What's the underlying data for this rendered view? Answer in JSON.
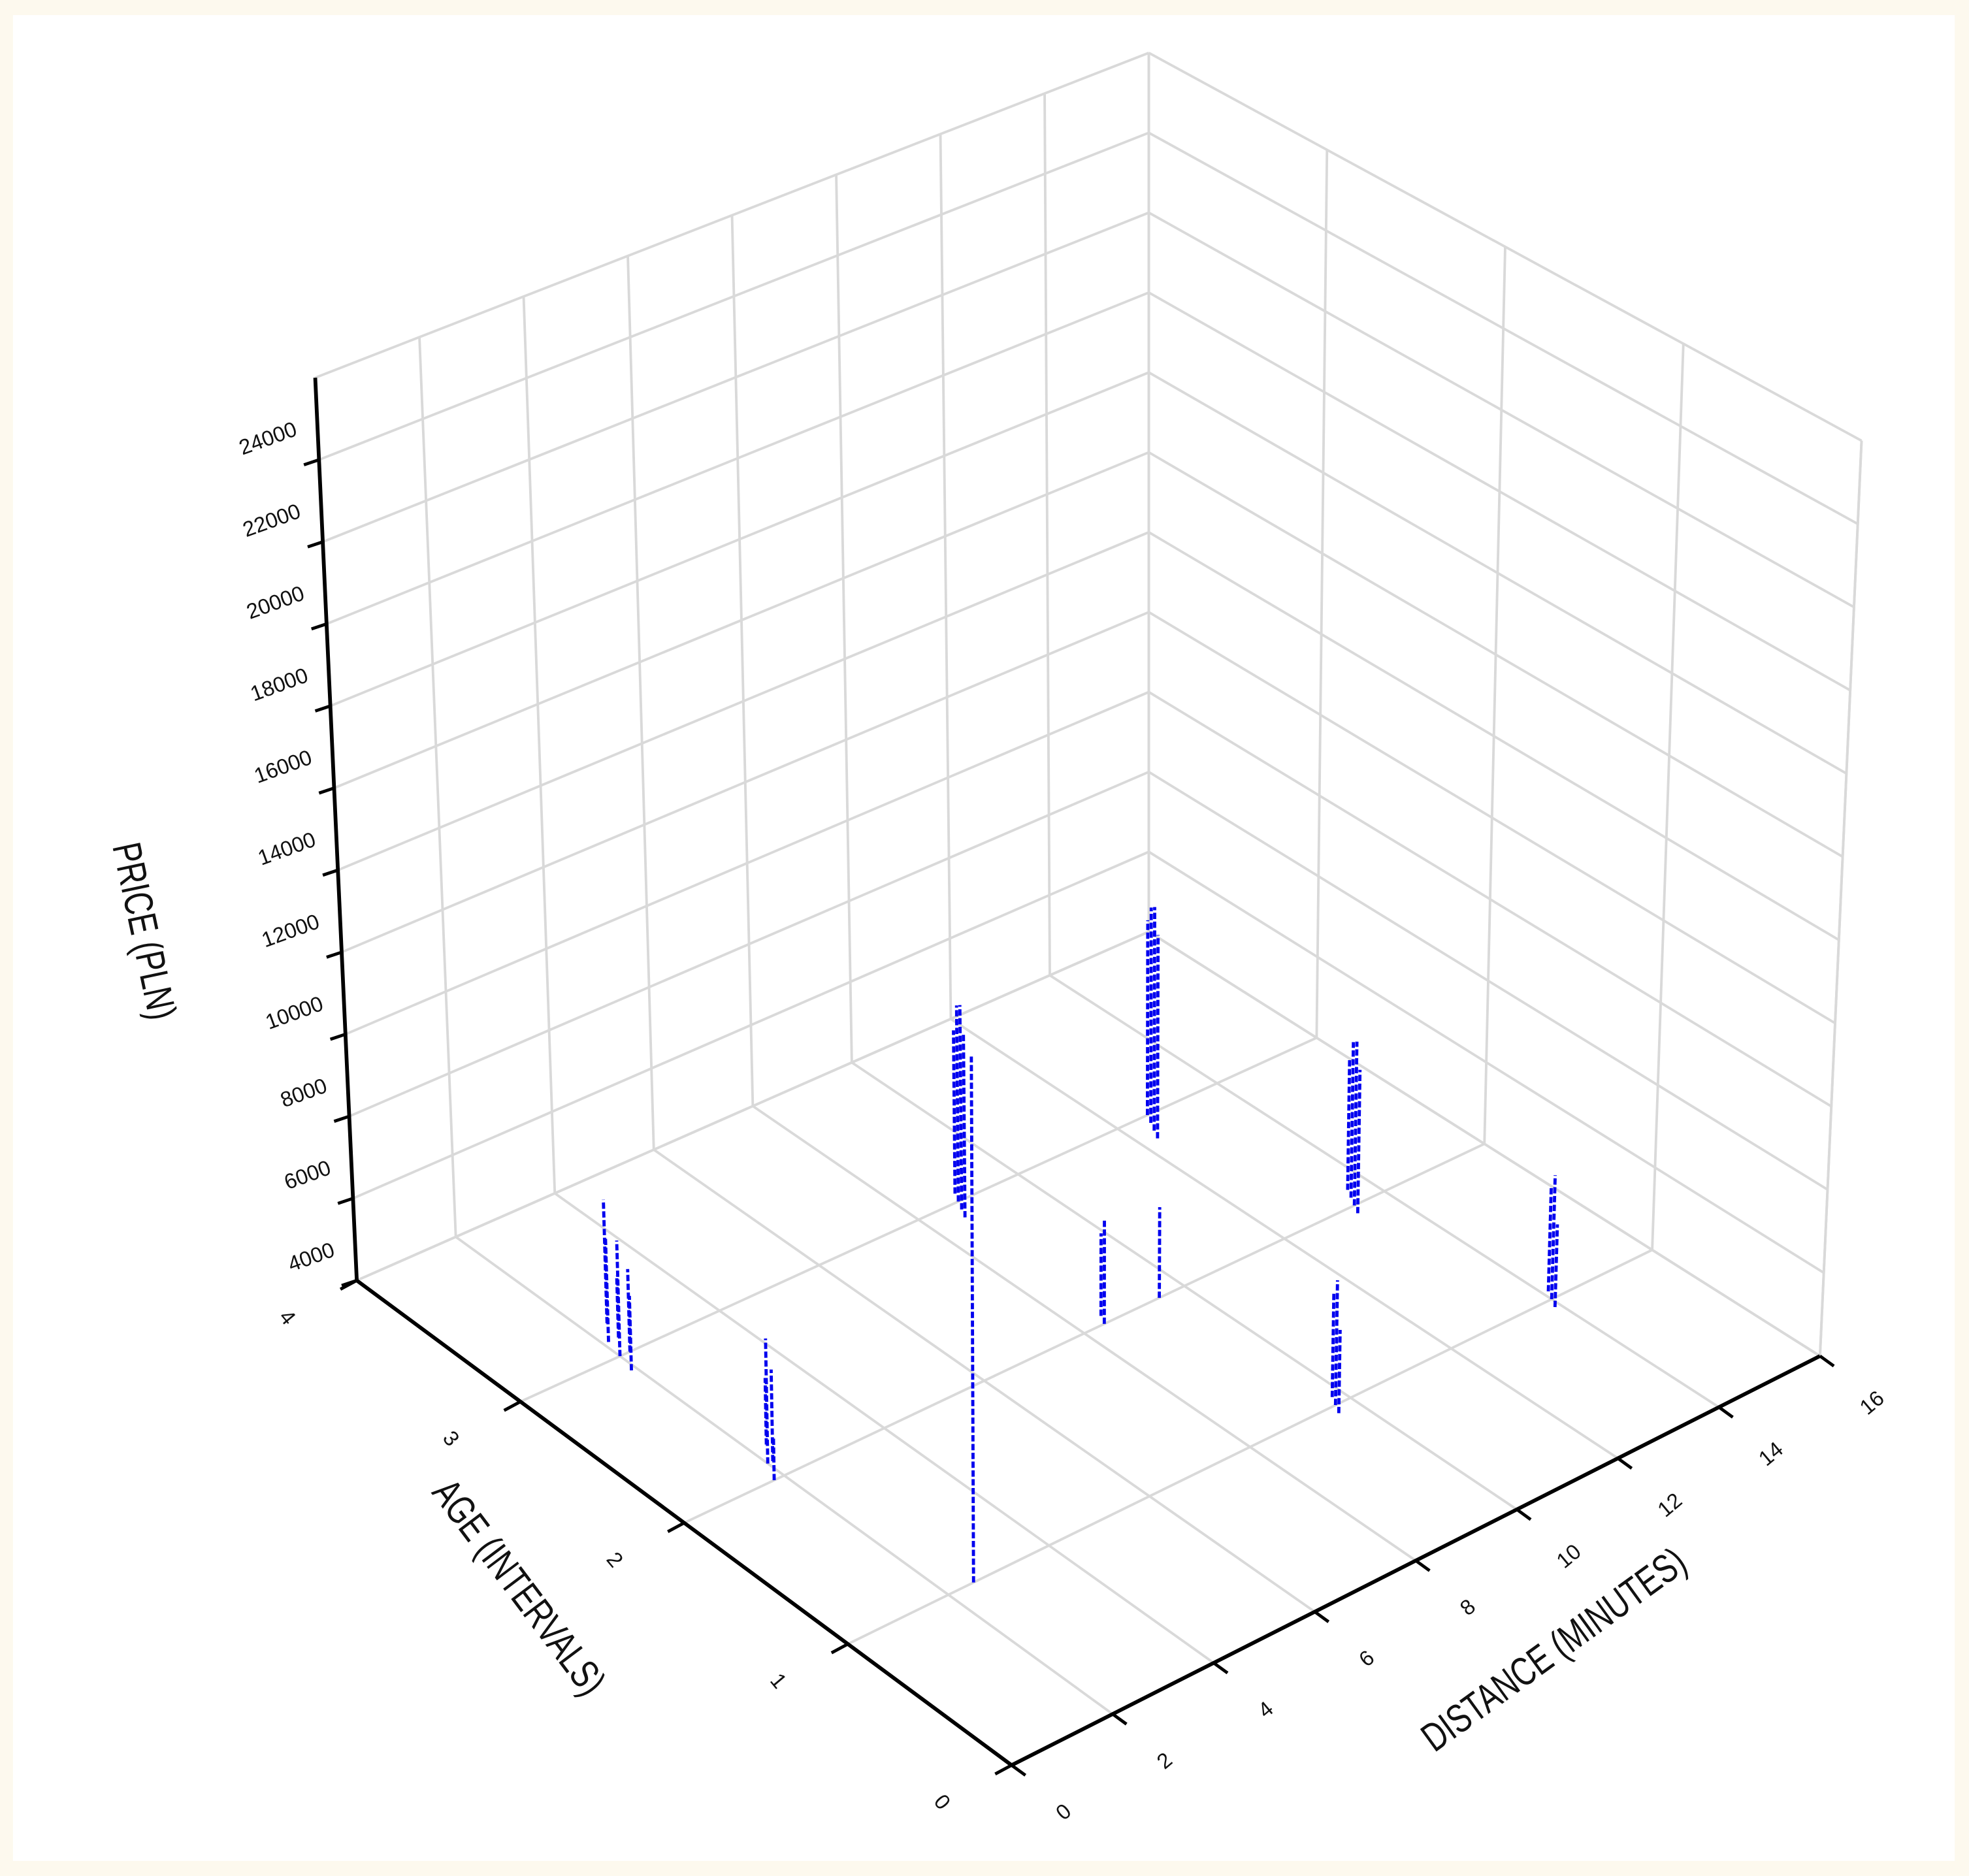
{
  "chart_data": {
    "type": "spike3d",
    "x_label": "DISTANCE (MINUTES)",
    "y_label": "AGE (INTERVALS)",
    "z_label": "PRICE (PLN)",
    "xlim": [
      0,
      16
    ],
    "xticks": [
      0,
      2,
      4,
      6,
      8,
      10,
      12,
      14,
      16
    ],
    "ylim": [
      0,
      4
    ],
    "yticks": [
      0,
      1,
      2,
      3,
      4
    ],
    "zlim": [
      4000,
      26000
    ],
    "zticks": [
      4000,
      6000,
      8000,
      10000,
      12000,
      14000,
      16000,
      18000,
      20000,
      22000,
      24000
    ],
    "grid": true,
    "color": "#0000ee",
    "x": [
      2.0,
      2.1,
      2.2,
      2.4,
      1.9,
      2.3,
      2.0,
      2.1,
      2.3,
      1.8,
      2.5,
      8.7,
      8.8,
      8.6,
      8.9,
      12.4,
      12.5,
      12.3,
      12.6,
      8.4,
      8.5,
      9.5,
      9.7,
      9.8,
      9.6,
      13.4,
      13.5,
      13.3,
      13.6,
      14.0,
      14.1,
      13.9
    ],
    "y": [
      3.0,
      3.1,
      3.0,
      3.2,
      2.9,
      3.1,
      2.1,
      2.1,
      2.2,
      2.0,
      1.0,
      2.95,
      3.0,
      2.9,
      3.05,
      2.9,
      2.95,
      2.85,
      3.0,
      2.0,
      2.05,
      2.0,
      1.0,
      1.05,
      0.95,
      2.0,
      2.05,
      1.95,
      2.1,
      1.0,
      1.05,
      0.95
    ],
    "z": [
      6800,
      6500,
      6000,
      7000,
      5800,
      5500,
      7000,
      6200,
      5600,
      5000,
      16500,
      9000,
      8800,
      8500,
      8000,
      9500,
      9300,
      9000,
      8800,
      6500,
      6000,
      6200,
      7000,
      6500,
      6000,
      8000,
      7800,
      7500,
      7200,
      7000,
      6500,
      6000
    ]
  }
}
